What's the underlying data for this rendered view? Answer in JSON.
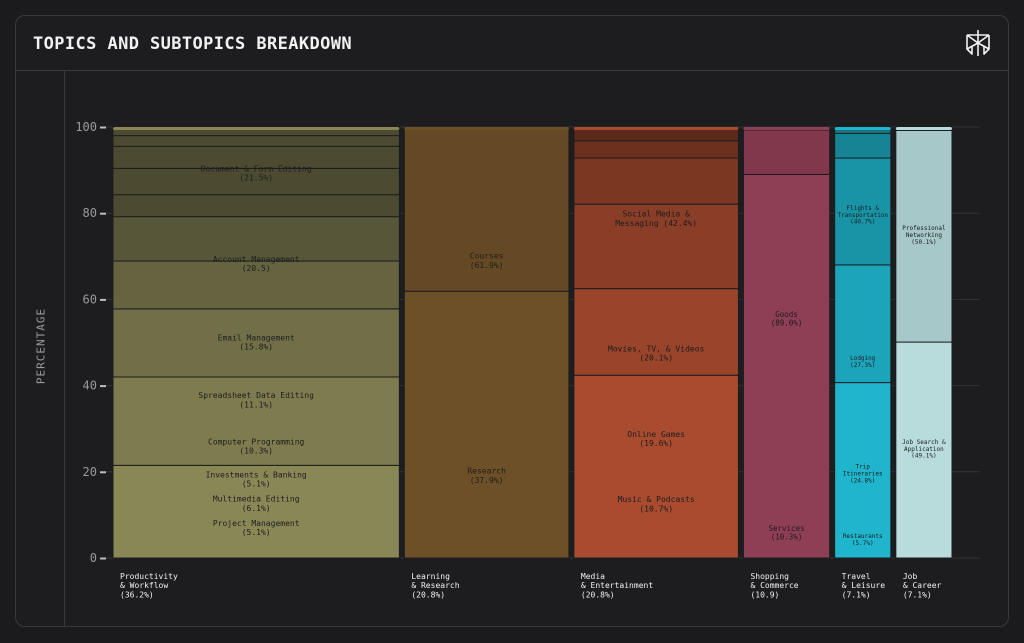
{
  "header": {
    "title": "TOPICS AND SUBTOPICS BREAKDOWN",
    "logo_icon": "perplexity-logo-icon"
  },
  "chart_data": {
    "type": "bar",
    "stacked": true,
    "variable_width": true,
    "title": "TOPICS AND SUBTOPICS BREAKDOWN",
    "ylabel": "PERCENTAGE",
    "ylim": [
      0,
      100
    ],
    "yticks": [
      0,
      20,
      40,
      60,
      80,
      100
    ],
    "grid": true,
    "categories": [
      {
        "name": "Productivity\n& Workflow",
        "share_label": "(36.2%)",
        "share": 36.2,
        "color": "#8a8757",
        "segments": [
          {
            "label": "Document & Form Editing",
            "value_label": "(21.5%)",
            "value": 21.5
          },
          {
            "label": "Account Management",
            "value_label": "(20.5)",
            "value": 20.5
          },
          {
            "label": "Email Management",
            "value_label": "(15.8%)",
            "value": 15.8
          },
          {
            "label": "Spreadsheet Data Editing",
            "value_label": "(11.1%)",
            "value": 11.1
          },
          {
            "label": "Computer Programming",
            "value_label": "(10.3%)",
            "value": 10.3
          },
          {
            "label": "Investments & Banking",
            "value_label": "(5.1%)",
            "value": 5.1
          },
          {
            "label": "Multimedia Editing",
            "value_label": "(6.1%)",
            "value": 6.1
          },
          {
            "label": "Project Management",
            "value_label": "(5.1%)",
            "value": 5.1
          },
          {
            "label": "",
            "value_label": "",
            "value": 2.5
          },
          {
            "label": "",
            "value_label": "",
            "value": 2.0
          }
        ]
      },
      {
        "name": "Learning\n& Research",
        "share_label": "(20.8%)",
        "share": 20.8,
        "color": "#6e5028",
        "segments": [
          {
            "label": "Courses",
            "value_label": "(61.9%)",
            "value": 61.9
          },
          {
            "label": "Research",
            "value_label": "(37.9%)",
            "value": 37.9
          }
        ]
      },
      {
        "name": "Media\n& Entertainment",
        "share_label": "(20.8%)",
        "share": 20.8,
        "color": "#a84b2f",
        "segments": [
          {
            "label": "Social Media &\nMessaging (42.4%)",
            "value_label": "",
            "value": 42.4
          },
          {
            "label": "Movies, TV, & Videos",
            "value_label": "(20.1%)",
            "value": 20.1
          },
          {
            "label": "Online Games",
            "value_label": "(19.6%)",
            "value": 19.6
          },
          {
            "label": "Music & Podcasts",
            "value_label": "(10.7%)",
            "value": 10.7
          },
          {
            "label": "",
            "value_label": "",
            "value": 4.0
          },
          {
            "label": "",
            "value_label": "",
            "value": 3.0
          }
        ]
      },
      {
        "name": "Shopping\n& Commerce",
        "share_label": "(10.9)",
        "share": 10.9,
        "color": "#8e3e55",
        "segments": [
          {
            "label": "Goods",
            "value_label": "(89.0%)",
            "value": 89.0
          },
          {
            "label": "Services",
            "value_label": "(10.3%)",
            "value": 10.3
          }
        ]
      },
      {
        "name": "Travel\n& Leisure",
        "share_label": "(7.1%)",
        "share": 7.1,
        "color": "#1fb5cc",
        "segments": [
          {
            "label": "Flights &\nTransportation",
            "value_label": "(40.7%)",
            "value": 40.7
          },
          {
            "label": "Lodging",
            "value_label": "(27.3%)",
            "value": 27.3
          },
          {
            "label": "Trip\nItineraries",
            "value_label": "(24.8%)",
            "value": 24.8
          },
          {
            "label": "Restaurants",
            "value_label": "(5.7%)",
            "value": 5.7
          },
          {
            "label": "",
            "value_label": "",
            "value": 1.5
          }
        ]
      },
      {
        "name": "Job\n& Career",
        "share_label": "(7.1%)",
        "share": 7.1,
        "color": "#b8dcdc",
        "segments": [
          {
            "label": "Professional\nNetworking",
            "value_label": "(50.1%)",
            "value": 50.1
          },
          {
            "label": "Job Search &\nApplication",
            "value_label": "(49.1%)",
            "value": 49.1
          },
          {
            "label": "",
            "value_label": "",
            "value": 0.8
          }
        ]
      }
    ]
  }
}
